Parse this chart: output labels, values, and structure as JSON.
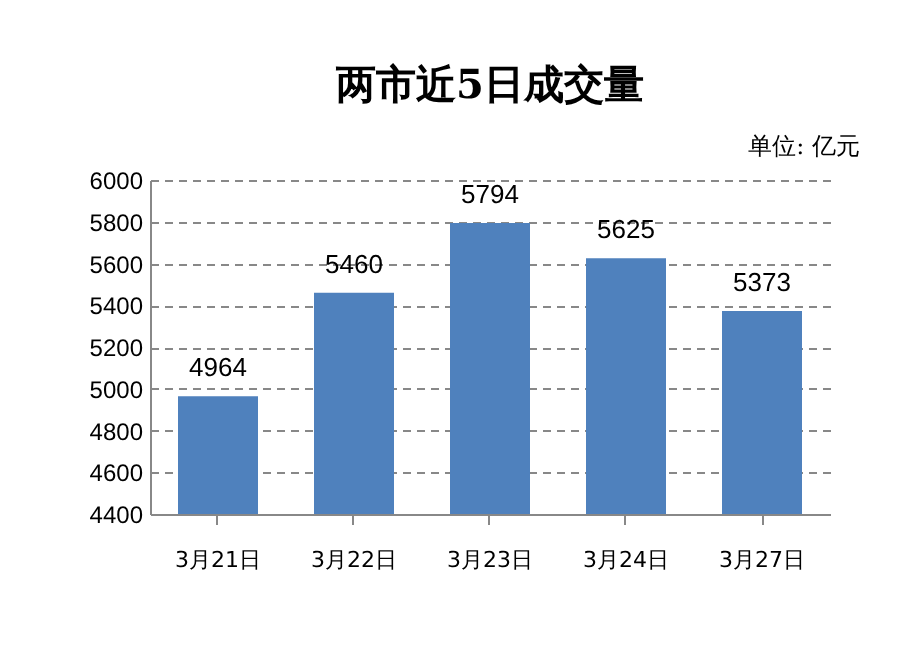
{
  "chart_data": {
    "type": "bar",
    "title": "两市近5日成交量",
    "annotations": [
      "单位: 亿元"
    ],
    "categories": [
      "3月21日",
      "3月22日",
      "3月23日",
      "3月24日",
      "3月27日"
    ],
    "values": [
      4964,
      5460,
      5794,
      5625,
      5373
    ],
    "color": "#4f81bd",
    "ylim": [
      4400,
      6000
    ],
    "yticks": [
      4400,
      4600,
      4800,
      5000,
      5200,
      5400,
      5600,
      5800,
      6000
    ],
    "grid": "y",
    "data_labels": true
  }
}
